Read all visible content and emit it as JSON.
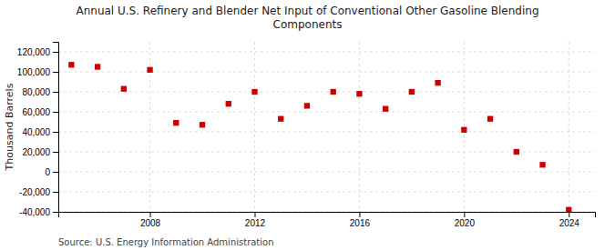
{
  "chart_data": {
    "type": "scatter",
    "title": "Annual U.S. Refinery and Blender Net Input of Conventional Other Gasoline Blending\nComponents",
    "y_label": "Thousand Barrels",
    "annotations": [
      "Source: U.S. Energy Information Administration"
    ],
    "x": [
      2005,
      2006,
      2007,
      2008,
      2009,
      2010,
      2011,
      2012,
      2013,
      2014,
      2015,
      2016,
      2017,
      2018,
      2019,
      2020,
      2021,
      2022,
      2023,
      2024
    ],
    "values": [
      107000,
      105000,
      83000,
      102000,
      49000,
      47000,
      68000,
      80000,
      53000,
      66000,
      80000,
      78000,
      63000,
      80000,
      89000,
      42000,
      53000,
      20000,
      7000,
      -38000
    ],
    "color": "#cc0000",
    "marker": "square",
    "xlim": [
      2004.5,
      2025
    ],
    "ylim": [
      -40000,
      130000
    ],
    "xticks": [
      2008,
      2012,
      2016,
      2020,
      2024
    ],
    "yticks": [
      {
        "value": -40000,
        "label": "-40,000"
      },
      {
        "value": -20000,
        "label": "-20,000"
      },
      0,
      {
        "value": 20000,
        "label": "20,000"
      },
      {
        "value": 40000,
        "label": "40,000"
      },
      {
        "value": 60000,
        "label": "60,000"
      },
      {
        "value": 80000,
        "label": "80,000"
      },
      {
        "value": 100000,
        "label": "100,000"
      },
      {
        "value": 120000,
        "label": "120,000"
      }
    ],
    "grid": true
  }
}
